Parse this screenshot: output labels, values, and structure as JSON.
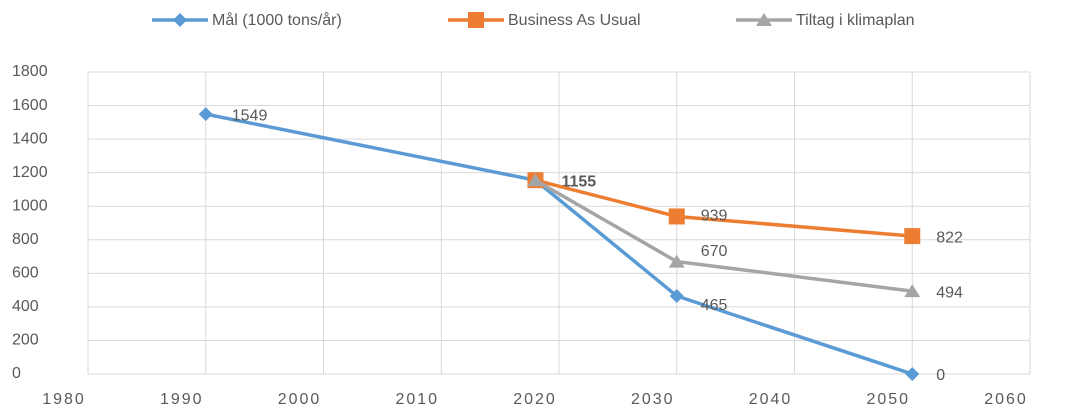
{
  "chart_data": {
    "type": "line",
    "xlim": [
      1980,
      2060
    ],
    "xticks": [
      1980,
      1990,
      2000,
      2010,
      2020,
      2030,
      2040,
      2050,
      2060
    ],
    "ylim": [
      0,
      1800
    ],
    "yticks": [
      0,
      200,
      400,
      600,
      800,
      1000,
      1200,
      1400,
      1600,
      1800
    ],
    "grid": true,
    "legend": "top",
    "series": [
      {
        "name": "Mål (1000 tons/år)",
        "color": "#5b9bd5",
        "marker": "diamond",
        "x": [
          1990,
          2018,
          2030,
          2050
        ],
        "values": [
          1549,
          1155,
          465,
          0
        ]
      },
      {
        "name": "Business As Usual",
        "color": "#ed7d31",
        "marker": "square",
        "x": [
          2018,
          2030,
          2050
        ],
        "values": [
          1155,
          939,
          822
        ],
        "value_labels": [
          null,
          939,
          822
        ]
      },
      {
        "name": "Tiltag i klimaplan",
        "color": "#a5a5a5",
        "marker": "triangle",
        "x": [
          2018,
          2030,
          2050
        ],
        "values": [
          1155,
          670,
          494
        ],
        "value_labels": [
          null,
          670,
          494
        ]
      }
    ]
  }
}
